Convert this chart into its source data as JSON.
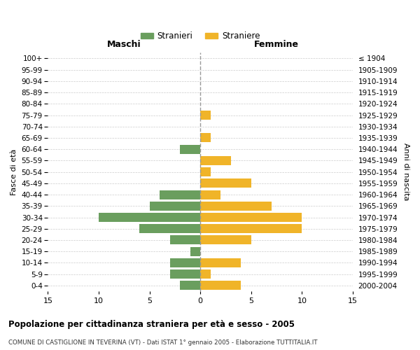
{
  "age_groups": [
    "100+",
    "95-99",
    "90-94",
    "85-89",
    "80-84",
    "75-79",
    "70-74",
    "65-69",
    "60-64",
    "55-59",
    "50-54",
    "45-49",
    "40-44",
    "35-39",
    "30-34",
    "25-29",
    "20-24",
    "15-19",
    "10-14",
    "5-9",
    "0-4"
  ],
  "birth_years": [
    "≤ 1904",
    "1905-1909",
    "1910-1914",
    "1915-1919",
    "1920-1924",
    "1925-1929",
    "1930-1934",
    "1935-1939",
    "1940-1944",
    "1945-1949",
    "1950-1954",
    "1955-1959",
    "1960-1964",
    "1965-1969",
    "1970-1974",
    "1975-1979",
    "1980-1984",
    "1985-1989",
    "1990-1994",
    "1995-1999",
    "2000-2004"
  ],
  "maschi": [
    0,
    0,
    0,
    0,
    0,
    0,
    0,
    0,
    2,
    0,
    0,
    0,
    4,
    5,
    10,
    6,
    3,
    1,
    3,
    3,
    2
  ],
  "femmine": [
    0,
    0,
    0,
    0,
    0,
    1,
    0,
    1,
    0,
    3,
    1,
    5,
    2,
    7,
    10,
    10,
    5,
    0,
    4,
    1,
    4
  ],
  "maschi_color": "#6a9e5e",
  "femmine_color": "#f0b429",
  "bar_height": 0.8,
  "xlim": 15,
  "title": "Popolazione per cittadinanza straniera per età e sesso - 2005",
  "subtitle": "COMUNE DI CASTIGLIONE IN TEVERINA (VT) - Dati ISTAT 1° gennaio 2005 - Elaborazione TUTTITALIA.IT",
  "ylabel_left": "Fasce di età",
  "ylabel_right": "Anni di nascita",
  "xlabel_maschi": "Maschi",
  "xlabel_femmine": "Femmine",
  "legend_maschi": "Stranieri",
  "legend_femmine": "Straniere",
  "background_color": "#ffffff",
  "grid_color": "#cccccc",
  "dashed_color": "#999999"
}
